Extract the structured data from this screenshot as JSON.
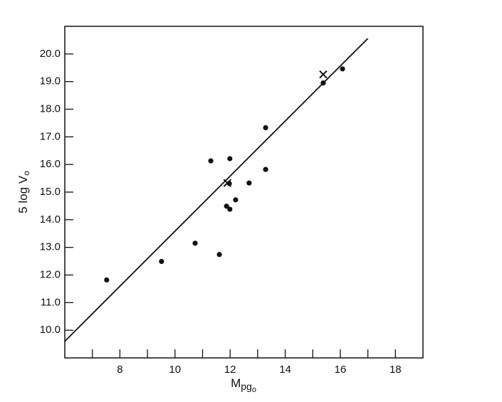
{
  "chart_data": {
    "type": "scatter",
    "x_label": {
      "main": "M",
      "sub": "pg",
      "subsub": "o"
    },
    "y_label": {
      "main": "5 log V",
      "sub": "o"
    },
    "xlim": [
      6,
      19
    ],
    "ylim": [
      9,
      21
    ],
    "xticks": [
      7,
      8,
      9,
      10,
      11,
      12,
      13,
      14,
      15,
      16,
      17,
      18
    ],
    "xtick_labels_shown": [
      8,
      10,
      12,
      14,
      16,
      18
    ],
    "yticks": [
      {
        "value": 10,
        "label": "10.0"
      },
      {
        "value": 11,
        "label": "11.0"
      },
      {
        "value": 12,
        "label": "12.0"
      },
      {
        "value": 13,
        "label": "13.0"
      },
      {
        "value": 14,
        "label": "14.0"
      },
      {
        "value": 15,
        "label": "15.0"
      },
      {
        "value": 16,
        "label": "16.0"
      },
      {
        "value": 17,
        "label": "17.0"
      },
      {
        "value": 18,
        "label": "18.0"
      },
      {
        "value": 19,
        "label": "19.0"
      },
      {
        "value": 20,
        "label": "20.0"
      }
    ],
    "color": "#111111",
    "series": [
      {
        "marker": "dot",
        "x": [
          7.52,
          9.51,
          10.73,
          11.3,
          11.61,
          11.87,
          11.99,
          11.99,
          11.97,
          12.2,
          12.69,
          13.29,
          13.29,
          15.38,
          16.08
        ],
        "values": [
          11.82,
          12.49,
          13.15,
          16.13,
          12.74,
          14.49,
          14.38,
          16.21,
          15.31,
          14.72,
          15.33,
          15.82,
          17.33,
          18.95,
          19.46
        ]
      },
      {
        "marker": "cross",
        "x": [
          11.9,
          15.38
        ],
        "values": [
          15.33,
          19.26
        ]
      }
    ],
    "fit_line": {
      "x": [
        6,
        17
      ],
      "values": [
        9.6,
        20.56
      ]
    }
  }
}
